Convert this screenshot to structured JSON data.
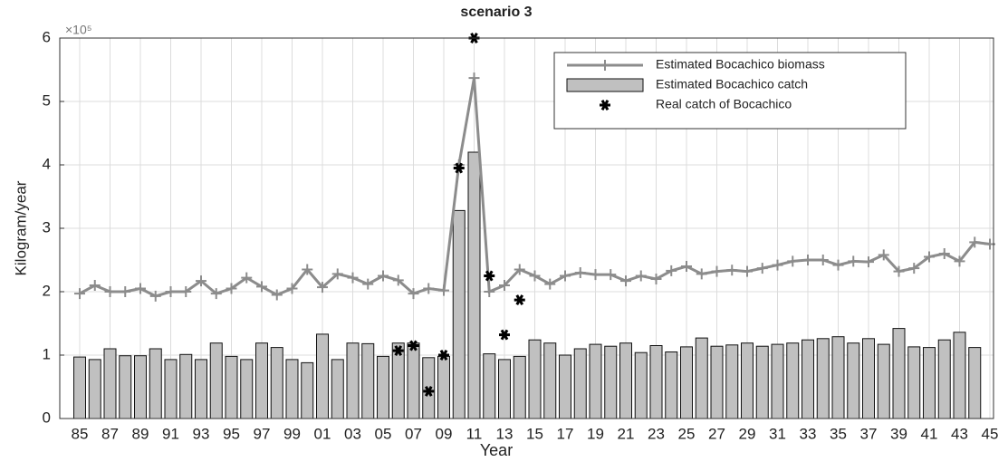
{
  "chart_data": {
    "type": "bar_line",
    "title": "scenario 3",
    "y_scale_label": "×10⁵",
    "x_label": "Year",
    "y_label": "Kilogram/year",
    "categories": [
      "85",
      null,
      "87",
      null,
      "89",
      null,
      "91",
      null,
      "93",
      null,
      "95",
      null,
      "97",
      null,
      "99",
      null,
      "01",
      null,
      "03",
      null,
      "05",
      null,
      "07",
      null,
      "09",
      null,
      "11",
      null,
      "13",
      null,
      "15",
      null,
      "17",
      null,
      "19",
      null,
      "21",
      null,
      "23",
      null,
      "25",
      null,
      "27",
      null,
      "29",
      null,
      "31",
      null,
      "33",
      null,
      "35",
      null,
      "37",
      null,
      "39",
      null,
      "41",
      null,
      "43",
      null,
      "45"
    ],
    "series": [
      {
        "name": "Estimated  Bocachico biomass",
        "kind": "line",
        "color": "#8c8c8c",
        "values": [
          1.97,
          2.1,
          2.0,
          2.0,
          2.05,
          1.93,
          2.0,
          2.0,
          2.17,
          1.97,
          2.05,
          2.22,
          2.08,
          1.95,
          2.05,
          2.35,
          2.07,
          2.28,
          2.22,
          2.12,
          2.25,
          2.18,
          1.97,
          2.05,
          2.02,
          4.0,
          5.37,
          2.0,
          2.1,
          2.35,
          2.25,
          2.12,
          2.25,
          2.3,
          2.27,
          2.27,
          2.17,
          2.25,
          2.2,
          2.33,
          2.4,
          2.28,
          2.32,
          2.34,
          2.32,
          2.37,
          2.42,
          2.48,
          2.5,
          2.5,
          2.42,
          2.48,
          2.47,
          2.58,
          2.32,
          2.37,
          2.55,
          2.6,
          2.48,
          2.78,
          2.75
        ]
      },
      {
        "name": "Estimated Bocachico catch",
        "kind": "bar",
        "color": "#c0c0c0",
        "values": [
          0.97,
          0.93,
          1.1,
          0.99,
          0.99,
          1.1,
          0.93,
          1.01,
          0.93,
          1.19,
          0.98,
          0.93,
          1.19,
          1.12,
          0.93,
          0.88,
          1.33,
          0.93,
          1.19,
          1.18,
          0.98,
          1.19,
          1.19,
          0.96,
          0.98,
          3.28,
          4.2,
          1.02,
          0.93,
          0.98,
          1.24,
          1.19,
          1.0,
          1.1,
          1.17,
          1.14,
          1.19,
          1.04,
          1.15,
          1.05,
          1.13,
          1.27,
          1.14,
          1.16,
          1.19,
          1.14,
          1.17,
          1.19,
          1.24,
          1.26,
          1.29,
          1.19,
          1.26,
          1.17,
          1.42,
          1.13,
          1.12,
          1.24,
          1.36,
          1.12,
          null
        ]
      },
      {
        "name": "Real catch of Bocachico",
        "kind": "star",
        "color": "#000000",
        "values": [
          null,
          null,
          null,
          null,
          null,
          null,
          null,
          null,
          null,
          null,
          null,
          null,
          null,
          null,
          null,
          null,
          null,
          null,
          null,
          null,
          null,
          1.07,
          1.15,
          0.43,
          1.0,
          3.95,
          6.0,
          2.25,
          1.32,
          1.87,
          null,
          null,
          null,
          null,
          null,
          null,
          null,
          null,
          null,
          null,
          null,
          null,
          null,
          null,
          null,
          null,
          null,
          null,
          null,
          null,
          null,
          null,
          null,
          null,
          null,
          null,
          null,
          null,
          null,
          null,
          null
        ]
      }
    ],
    "ylim": [
      0,
      6
    ],
    "yticks": [
      0,
      1,
      2,
      3,
      4,
      5,
      6
    ],
    "grid": true,
    "legend": "upper right"
  }
}
